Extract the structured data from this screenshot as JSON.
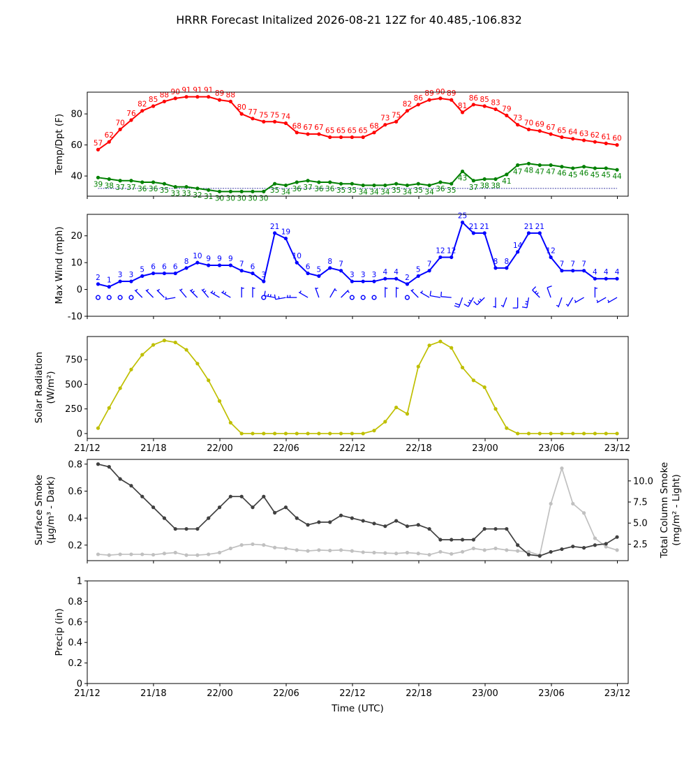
{
  "title": "HRRR Forecast Initalized 2026-08-21 12Z for 40.485,-106.832",
  "xlabel": "Time (UTC)",
  "x_tick_labels": [
    "21/12",
    "21/18",
    "22/00",
    "22/06",
    "22/12",
    "22/18",
    "23/00",
    "23/06",
    "23/12"
  ],
  "colors": {
    "temp": "#ff0000",
    "dewpoint": "#008000",
    "wind": "#0000ff",
    "solar": "#bfbf00",
    "smoke_surface": "#404040",
    "smoke_column": "#c0c0c0",
    "frost_line": "#00008b"
  },
  "chart_data": [
    {
      "type": "line",
      "id": "temp_dpt",
      "ylabel": "Temp/Dpt (F)",
      "x": "hours 1-48 after 2026-08-21 12Z",
      "ylim": [
        27,
        94
      ],
      "yticks": [
        40,
        60,
        80
      ],
      "reference_line": 32,
      "series": [
        {
          "values": [
            57,
            62,
            70,
            76,
            82,
            85,
            88,
            90,
            91,
            91,
            91,
            89,
            88,
            80,
            77,
            75,
            75,
            74,
            68,
            67,
            67,
            65,
            65,
            65,
            65,
            68,
            73,
            75,
            82,
            86,
            89,
            90,
            89,
            81,
            86,
            85,
            83,
            79,
            73,
            70,
            69,
            67,
            65,
            64,
            63,
            62,
            61,
            60
          ]
        },
        {
          "values": [
            39,
            38,
            37,
            37,
            36,
            36,
            35,
            33,
            33,
            32,
            31,
            30,
            30,
            30,
            30,
            30,
            35,
            34,
            36,
            37,
            36,
            36,
            35,
            35,
            34,
            34,
            34,
            35,
            34,
            35,
            34,
            36,
            35,
            43,
            37,
            38,
            38,
            41,
            47,
            48,
            47,
            47,
            46,
            45,
            46,
            45,
            45,
            44
          ]
        }
      ]
    },
    {
      "type": "line",
      "id": "wind",
      "ylabel": "Max Wind (mph)",
      "ylim": [
        -10,
        28
      ],
      "yticks": [
        -10,
        0,
        10,
        20
      ],
      "values": [
        2,
        1,
        3,
        3,
        5,
        6,
        6,
        6,
        8,
        10,
        9,
        9,
        9,
        7,
        6,
        3,
        21,
        19,
        10,
        6,
        5,
        8,
        7,
        3,
        3,
        3,
        4,
        4,
        2,
        5,
        7,
        12,
        12,
        25,
        21,
        21,
        8,
        8,
        14,
        21,
        21,
        12,
        7,
        7,
        7,
        4,
        4,
        4
      ],
      "wind_direction_deg": [
        0,
        0,
        0,
        0,
        315,
        315,
        315,
        260,
        320,
        315,
        320,
        300,
        300,
        0,
        0,
        290,
        280,
        260,
        270,
        300,
        340,
        30,
        45,
        0,
        0,
        0,
        0,
        0,
        0,
        315,
        300,
        280,
        275,
        200,
        210,
        225,
        180,
        200,
        180,
        190,
        315,
        340,
        200,
        210,
        240,
        0,
        240,
        240
      ]
    },
    {
      "type": "line",
      "id": "solar",
      "ylabel": "Solar Radiation (W/m²)",
      "ylim": [
        -50,
        985
      ],
      "yticks": [
        0,
        250,
        500,
        750
      ],
      "values": [
        55,
        260,
        460,
        650,
        800,
        900,
        945,
        925,
        850,
        710,
        540,
        330,
        110,
        0,
        0,
        0,
        0,
        0,
        0,
        0,
        0,
        0,
        0,
        0,
        0,
        30,
        120,
        265,
        200,
        680,
        895,
        935,
        870,
        670,
        540,
        470,
        250,
        55,
        0,
        0,
        0,
        0,
        0,
        0,
        0,
        0,
        0,
        0
      ]
    },
    {
      "type": "line",
      "id": "smoke",
      "ylabel": "Surface Smoke (μg/m³ - Dark)",
      "y2label": "Total Column Smoke (mg/m² - Light)",
      "ylim": [
        0.085,
        0.835
      ],
      "yticks": [
        0.2,
        0.4,
        0.6,
        0.8
      ],
      "y2lim": [
        0.55,
        12.55
      ],
      "y2ticks": [
        2.5,
        5.0,
        7.5,
        10.0
      ],
      "series": [
        {
          "values": [
            0.8,
            0.78,
            0.69,
            0.64,
            0.56,
            0.48,
            0.4,
            0.32,
            0.32,
            0.32,
            0.4,
            0.48,
            0.56,
            0.56,
            0.48,
            0.56,
            0.44,
            0.48,
            0.4,
            0.35,
            0.37,
            0.37,
            0.42,
            0.4,
            0.38,
            0.36,
            0.34,
            0.38,
            0.34,
            0.35,
            0.32,
            0.24,
            0.24,
            0.24,
            0.24,
            0.32,
            0.32,
            0.32,
            0.2,
            0.13,
            0.12,
            0.15,
            0.17,
            0.19,
            0.18,
            0.2,
            0.21,
            0.26
          ]
        },
        {
          "values": [
            1.3,
            1.2,
            1.3,
            1.3,
            1.3,
            1.25,
            1.4,
            1.5,
            1.2,
            1.2,
            1.3,
            1.5,
            2.0,
            2.4,
            2.5,
            2.4,
            2.1,
            2.0,
            1.8,
            1.7,
            1.8,
            1.75,
            1.8,
            1.7,
            1.55,
            1.5,
            1.45,
            1.4,
            1.5,
            1.4,
            1.25,
            1.6,
            1.35,
            1.6,
            2.0,
            1.8,
            2.0,
            1.8,
            1.7,
            1.6,
            1.2,
            7.3,
            11.5,
            7.3,
            6.2,
            3.2,
            2.2,
            1.8
          ]
        }
      ]
    },
    {
      "type": "line",
      "id": "precip",
      "ylabel": "Precip (in)",
      "ylim": [
        0,
        1
      ],
      "yticks": [
        0.0,
        0.2,
        0.4,
        0.6,
        0.8,
        1.0
      ],
      "values": []
    }
  ]
}
